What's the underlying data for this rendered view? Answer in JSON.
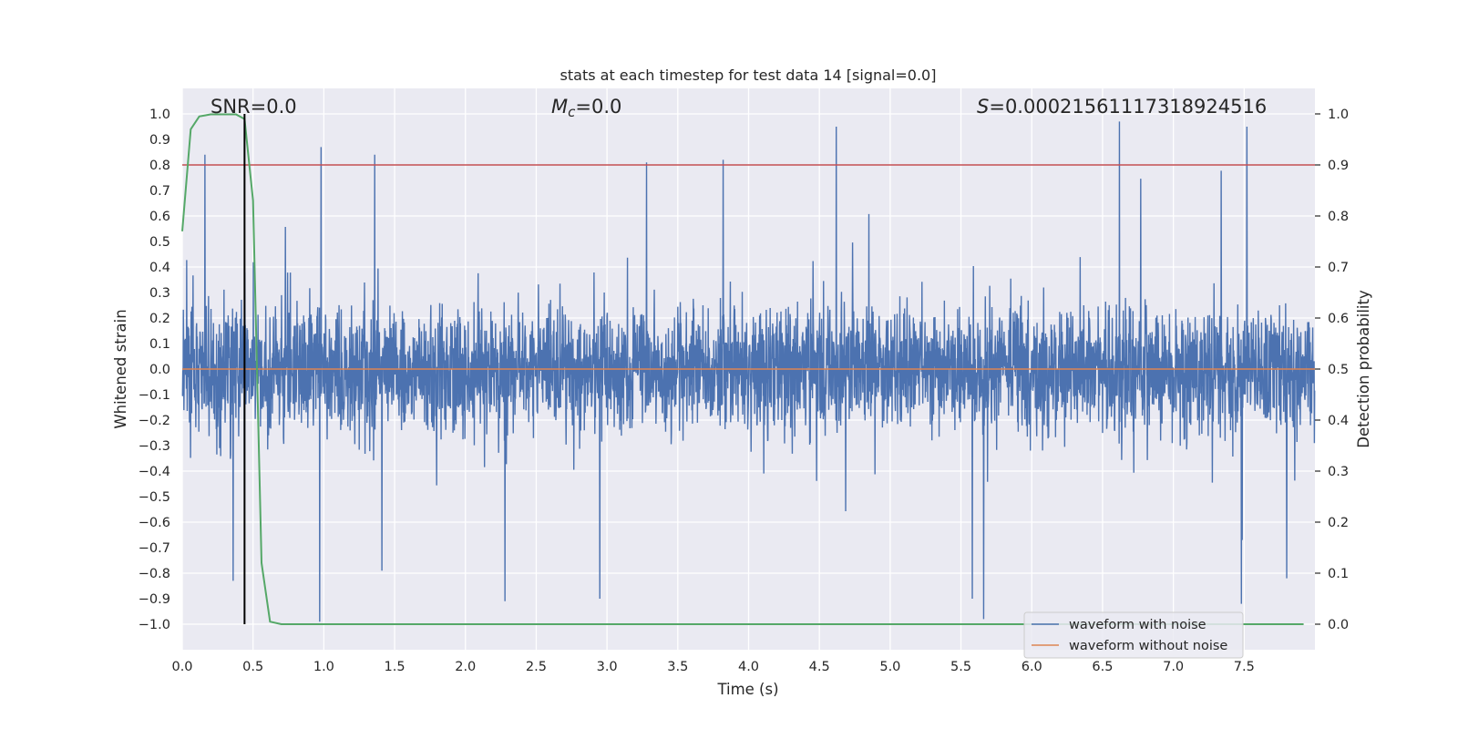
{
  "chart_data": {
    "type": "line",
    "title": "stats at each timestep for test data 14 [signal=0.0]",
    "xlabel": "Time (s)",
    "ylabel": "Whitened strain",
    "ylabel_right": "Detection probability",
    "xlim": [
      0.0,
      8.0
    ],
    "ylim": [
      -1.1,
      1.1
    ],
    "ylim_right": [
      -0.05,
      1.05
    ],
    "x_ticks": [
      "0.0",
      "0.5",
      "1.0",
      "1.5",
      "2.0",
      "2.5",
      "3.0",
      "3.5",
      "4.0",
      "4.5",
      "5.0",
      "5.5",
      "6.0",
      "6.5",
      "7.0",
      "7.5"
    ],
    "y_ticks": [
      "1.0",
      "0.9",
      "0.8",
      "0.7",
      "0.6",
      "0.5",
      "0.4",
      "0.3",
      "0.2",
      "0.1",
      "0.0",
      "−0.1",
      "−0.2",
      "−0.3",
      "−0.4",
      "−0.5",
      "−0.6",
      "−0.7",
      "−0.8",
      "−0.9",
      "−1.0"
    ],
    "y_ticks_right": [
      "1.0",
      "0.9",
      "0.8",
      "0.7",
      "0.6",
      "0.5",
      "0.4",
      "0.3",
      "0.2",
      "0.1",
      "0.0"
    ],
    "grid": true,
    "legend_position": "bottom-right",
    "annotations": {
      "snr": "SNR=0.0",
      "mc_symbol": "M",
      "mc_subscript": "c",
      "mc_value": "=0.0",
      "s_symbol": "S",
      "s_value": "=0.00021561117318924516"
    },
    "series": [
      {
        "name": "waveform with noise",
        "color": "#4c72b0",
        "axis": "left",
        "description_values": "dense whitened noise, roughly within -0.99 to 0.96"
      },
      {
        "name": "waveform without noise",
        "color": "#dd8452",
        "axis": "left",
        "values_y": 0.0
      },
      {
        "name": "detection probability",
        "color": "#55a868",
        "axis": "right",
        "x": [
          0.0,
          0.06,
          0.12,
          0.2,
          0.3,
          0.38,
          0.44,
          0.5,
          0.56,
          0.62,
          0.7,
          8.0
        ],
        "y": [
          0.77,
          0.97,
          0.995,
          0.999,
          0.999,
          0.999,
          0.99,
          0.83,
          0.12,
          0.005,
          0.0,
          0.0
        ]
      }
    ],
    "threshold": {
      "color": "#c44e52",
      "axis": "right",
      "y": 0.9
    },
    "marker_line": {
      "color": "#000000",
      "x": 0.44,
      "y_range": [
        -1.0,
        1.0
      ]
    },
    "noise_peaks": [
      [
        0.16,
        0.84
      ],
      [
        0.36,
        -0.83
      ],
      [
        0.44,
        -0.68
      ],
      [
        0.98,
        0.87
      ],
      [
        0.97,
        -0.99
      ],
      [
        1.36,
        0.84
      ],
      [
        1.41,
        -0.79
      ],
      [
        2.28,
        -0.91
      ],
      [
        2.95,
        -0.9
      ],
      [
        3.28,
        0.81
      ],
      [
        3.82,
        0.82
      ],
      [
        4.62,
        0.95
      ],
      [
        5.58,
        -0.9
      ],
      [
        5.66,
        -0.98
      ],
      [
        6.62,
        0.97
      ],
      [
        7.52,
        0.95
      ],
      [
        7.48,
        -0.92
      ],
      [
        7.8,
        -0.82
      ]
    ]
  }
}
